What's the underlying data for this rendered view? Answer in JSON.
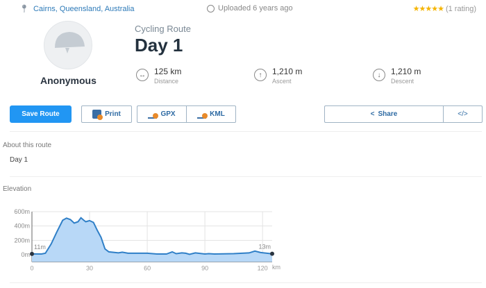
{
  "header": {
    "location": "Cairns, Queensland, Australia",
    "uploaded": "Uploaded 6 years ago",
    "stars": "★★★★★",
    "rating": "(1 rating)"
  },
  "author": {
    "name": "Anonymous"
  },
  "route": {
    "type": "Cycling Route",
    "title": "Day 1",
    "stats": [
      {
        "value": "125 km",
        "label": "Distance",
        "icon": "↔"
      },
      {
        "value": "1,210 m",
        "label": "Ascent",
        "icon": "↑"
      },
      {
        "value": "1,210 m",
        "label": "Descent",
        "icon": "↓"
      }
    ]
  },
  "buttons": {
    "save": "Save Route",
    "print": "Print",
    "gpx": "GPX",
    "kml": "KML",
    "share": "Share",
    "embed": "</>"
  },
  "about": {
    "heading": "About this route",
    "text": "Day 1"
  },
  "elevation": {
    "heading": "Elevation"
  },
  "colors": {
    "accent": "#2196f3",
    "line": "#2f7fc7",
    "fill": "#b8d8f7"
  },
  "chart_data": {
    "type": "area",
    "title": "Elevation",
    "xlabel": "km",
    "ylabel": "",
    "xlim": [
      0,
      125
    ],
    "ylim": [
      -100,
      650
    ],
    "xticks": [
      0,
      30,
      60,
      90,
      120
    ],
    "xtick_labels": [
      "0",
      "30",
      "60",
      "90",
      "120"
    ],
    "yticks": [
      0,
      200,
      400,
      600
    ],
    "ytick_labels": [
      "0m",
      "200m",
      "400m",
      "600m"
    ],
    "start_label": "11m",
    "end_label": "13m",
    "x": [
      0,
      5,
      7,
      10,
      13,
      16,
      18,
      20,
      22,
      24,
      25.5,
      27,
      28,
      30,
      32,
      34,
      36,
      38,
      40,
      45,
      47,
      50,
      60,
      65,
      70,
      73,
      75,
      78,
      80,
      82,
      85,
      90,
      92,
      95,
      105,
      113,
      116,
      119,
      125
    ],
    "y": [
      11,
      10,
      20,
      150,
      320,
      480,
      510,
      490,
      440,
      460,
      515,
      480,
      460,
      475,
      450,
      340,
      240,
      80,
      40,
      25,
      35,
      20,
      20,
      10,
      10,
      40,
      15,
      25,
      20,
      5,
      25,
      10,
      15,
      10,
      15,
      25,
      50,
      30,
      13
    ]
  }
}
